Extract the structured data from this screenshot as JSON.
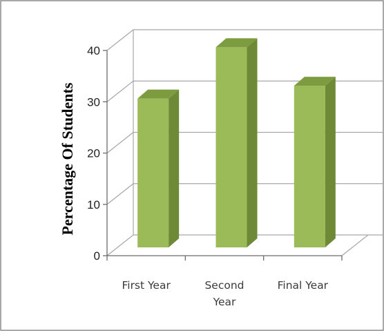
{
  "chart_data": {
    "type": "bar",
    "style": "3d-column",
    "categories": [
      "First Year",
      "Second Year",
      "Final Year"
    ],
    "category_lines": [
      [
        "First Year"
      ],
      [
        "Second",
        "Year"
      ],
      [
        "Final Year"
      ]
    ],
    "values": [
      29,
      39,
      31.5
    ],
    "title": "",
    "xlabel": "",
    "ylabel": "Percentage Of Students",
    "ylim": [
      0,
      40
    ],
    "yticks": [
      0,
      10,
      20,
      30,
      40
    ],
    "grid": true,
    "legend": "none"
  },
  "colors": {
    "bar_front": "#9bbb59",
    "bar_side": "#6e8a36",
    "bar_top": "#7d9c3f",
    "gridline": "#a6a6a6",
    "axis": "#6b6b6b",
    "border": "#8c8c8c"
  }
}
